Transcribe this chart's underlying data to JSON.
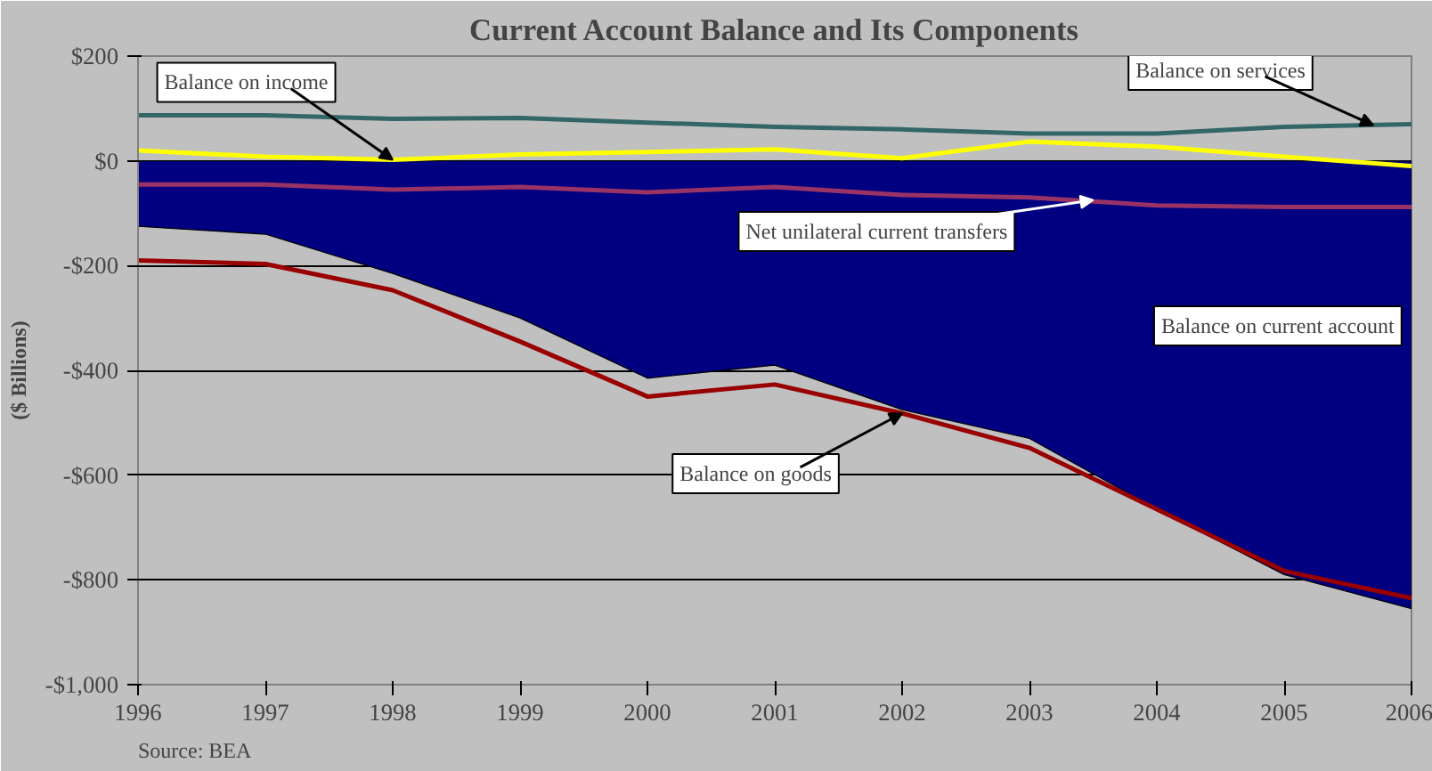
{
  "chart_data": {
    "type": "line",
    "title": "Current Account Balance and Its Components",
    "ylabel": "($ Billions)",
    "x": [
      1996,
      1997,
      1998,
      1999,
      2000,
      2001,
      2002,
      2003,
      2004,
      2005,
      2006
    ],
    "series": [
      {
        "type": "area",
        "color": "#000080",
        "values": [
          -125,
          -140,
          -215,
          -300,
          -415,
          -390,
          -475,
          -530,
          -665,
          -790,
          -855
        ]
      },
      {
        "color": "#990000",
        "values": [
          -190,
          -197,
          -247,
          -345,
          -450,
          -427,
          -482,
          -548,
          -665,
          -783,
          -835
        ]
      },
      {
        "color": "#336666",
        "values": [
          87,
          87,
          80,
          82,
          73,
          65,
          60,
          52,
          52,
          65,
          70
        ]
      },
      {
        "color": "#ffff00",
        "values": [
          20,
          8,
          2,
          12,
          17,
          22,
          5,
          37,
          27,
          8,
          -10
        ]
      },
      {
        "color": "#993366",
        "values": [
          -45,
          -45,
          -55,
          -50,
          -60,
          -50,
          -65,
          -70,
          -85,
          -88,
          -88
        ]
      }
    ],
    "xlim": [
      1996,
      2006
    ],
    "xticks": [
      1996,
      1997,
      1998,
      1999,
      2000,
      2001,
      2002,
      2003,
      2004,
      2005,
      2006
    ],
    "ylim": [
      -1000,
      200
    ],
    "yticks": [
      {
        "value": -1000,
        "label": "-$1,000"
      },
      {
        "value": -800,
        "label": "-$800"
      },
      {
        "value": -600,
        "label": "-$600"
      },
      {
        "value": -400,
        "label": "-$400"
      },
      {
        "value": -200,
        "label": "-$200"
      },
      {
        "value": 0,
        "label": "$0"
      },
      {
        "value": 200,
        "label": "$200"
      }
    ],
    "grid": "y",
    "annotations": [
      {
        "text": "Balance on income",
        "x": 1998,
        "y": 2
      },
      {
        "text": "Balance on services",
        "x": 2005.7,
        "y": 68
      },
      {
        "text": "Net unilateral current transfers",
        "x": 2003.5,
        "y": -75
      },
      {
        "text": "Balance on goods",
        "x": 2002,
        "y": -482
      },
      "Balance on current account",
      "Source:  BEA"
    ]
  }
}
